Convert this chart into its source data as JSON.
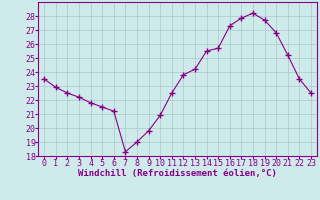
{
  "x": [
    0,
    1,
    2,
    3,
    4,
    5,
    6,
    7,
    8,
    9,
    10,
    11,
    12,
    13,
    14,
    15,
    16,
    17,
    18,
    19,
    20,
    21,
    22,
    23
  ],
  "y": [
    23.5,
    22.9,
    22.5,
    22.2,
    21.8,
    21.5,
    21.2,
    18.3,
    19.0,
    19.8,
    20.9,
    22.5,
    23.8,
    24.2,
    25.5,
    25.7,
    27.3,
    27.85,
    28.2,
    27.7,
    26.8,
    25.2,
    23.5,
    22.5
  ],
  "line_color": "#880088",
  "marker": "+",
  "marker_size": 4,
  "marker_lw": 1.0,
  "bg_color": "#ceeaea",
  "grid_color": "#aac8c8",
  "xlabel": "Windchill (Refroidissement éolien,°C)",
  "xlabel_color": "#880088",
  "ylim": [
    18,
    29
  ],
  "yticks": [
    18,
    19,
    20,
    21,
    22,
    23,
    24,
    25,
    26,
    27,
    28
  ],
  "xlim": [
    -0.5,
    23.5
  ],
  "xticks": [
    0,
    1,
    2,
    3,
    4,
    5,
    6,
    7,
    8,
    9,
    10,
    11,
    12,
    13,
    14,
    15,
    16,
    17,
    18,
    19,
    20,
    21,
    22,
    23
  ],
  "tick_color": "#880088",
  "spine_color": "#880088",
  "font_size_xlabel": 6.5,
  "font_size_tick": 6.0
}
